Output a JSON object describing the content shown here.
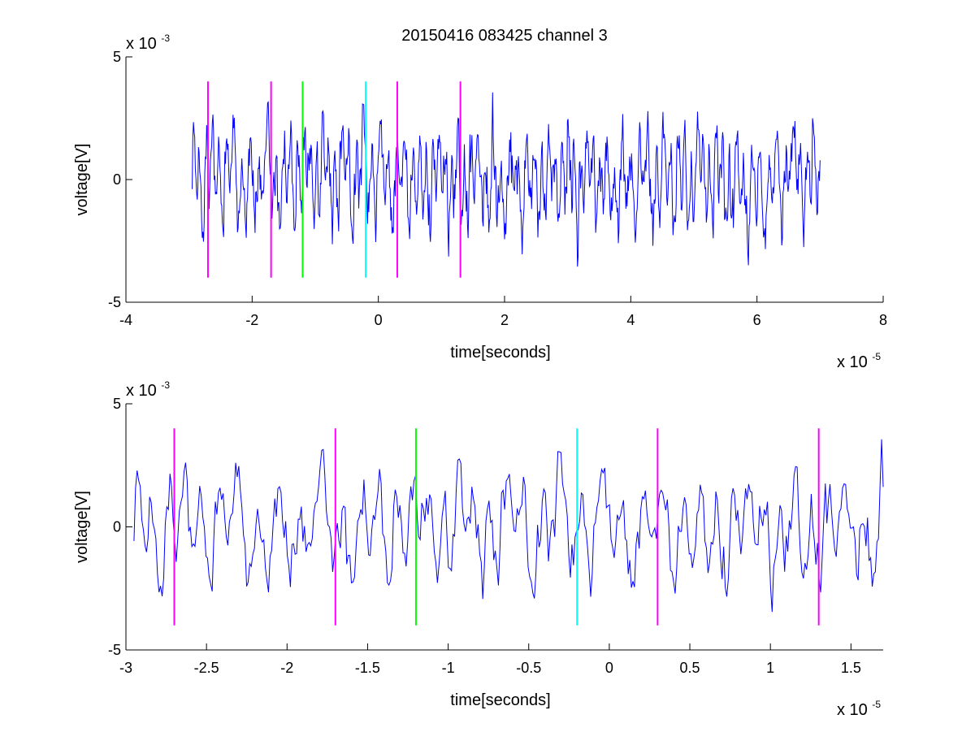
{
  "chart_data": [
    {
      "type": "line",
      "title": "20150416 083425 channel 3",
      "xlabel": "time[seconds]",
      "ylabel": "voltage[V]",
      "x_scale_label": "x 10",
      "x_scale_exp": "-5",
      "y_scale_label": "x 10",
      "y_scale_exp": "-3",
      "xlim": [
        -4e-05,
        8e-05
      ],
      "ylim": [
        -0.005,
        0.005
      ],
      "x_ticks": [
        -4,
        -2,
        0,
        2,
        4,
        6,
        8
      ],
      "x_tick_labels": [
        "-4",
        "-2",
        "0",
        "2",
        "4",
        "6",
        "8"
      ],
      "y_ticks": [
        -5,
        0,
        5
      ],
      "y_tick_labels": [
        "-5",
        "0",
        "5"
      ],
      "series": [
        {
          "color": "#0000ff",
          "x_start": -2.95e-05,
          "x_end": 7e-05,
          "n_points": 1000,
          "amplitude_range": [
            -0.0037,
            0.0037
          ]
        }
      ],
      "markers": [
        {
          "x": -2.7e-05,
          "color": "#ff00ff",
          "y_range": [
            -0.004,
            0.004
          ]
        },
        {
          "x": -1.7e-05,
          "color": "#ff00ff",
          "y_range": [
            -0.004,
            0.004
          ]
        },
        {
          "x": -1.2e-05,
          "color": "#00ff00",
          "y_range": [
            -0.004,
            0.004
          ]
        },
        {
          "x": -2e-06,
          "color": "#00ffff",
          "y_range": [
            -0.004,
            0.004
          ]
        },
        {
          "x": 3e-06,
          "color": "#ff00ff",
          "y_range": [
            -0.004,
            0.004
          ]
        },
        {
          "x": 1.3e-05,
          "color": "#ff00ff",
          "y_range": [
            -0.004,
            0.004
          ]
        }
      ]
    },
    {
      "type": "line",
      "title": "",
      "xlabel": "time[seconds]",
      "ylabel": "voltage[V]",
      "x_scale_label": "x 10",
      "x_scale_exp": "-5",
      "y_scale_label": "x 10",
      "y_scale_exp": "-3",
      "xlim": [
        -3e-05,
        1.7e-05
      ],
      "ylim": [
        -0.005,
        0.005
      ],
      "x_ticks": [
        -3,
        -2.5,
        -2,
        -1.5,
        -1,
        -0.5,
        0,
        0.5,
        1,
        1.5
      ],
      "x_tick_labels": [
        "-3",
        "-2.5",
        "-2",
        "-1.5",
        "-1",
        "-0.5",
        "0",
        "0.5",
        "1",
        "1.5"
      ],
      "y_ticks": [
        -5,
        0,
        5
      ],
      "y_tick_labels": [
        "-5",
        "0",
        "5"
      ],
      "series": [
        {
          "color": "#0000ff",
          "x_start": -2.95e-05,
          "x_end": 1.7e-05,
          "n_points": 480,
          "amplitude_range": [
            -0.0036,
            0.0037
          ]
        }
      ],
      "markers": [
        {
          "x": -2.7e-05,
          "color": "#ff00ff",
          "y_range": [
            -0.004,
            0.004
          ]
        },
        {
          "x": -1.7e-05,
          "color": "#ff00ff",
          "y_range": [
            -0.004,
            0.004
          ]
        },
        {
          "x": -1.2e-05,
          "color": "#00ff00",
          "y_range": [
            -0.004,
            0.004
          ]
        },
        {
          "x": -2e-06,
          "color": "#00ffff",
          "y_range": [
            -0.004,
            0.004
          ]
        },
        {
          "x": 3e-06,
          "color": "#ff00ff",
          "y_range": [
            -0.004,
            0.004
          ]
        },
        {
          "x": 1.3e-05,
          "color": "#ff00ff",
          "y_range": [
            -0.004,
            0.004
          ]
        }
      ]
    }
  ]
}
